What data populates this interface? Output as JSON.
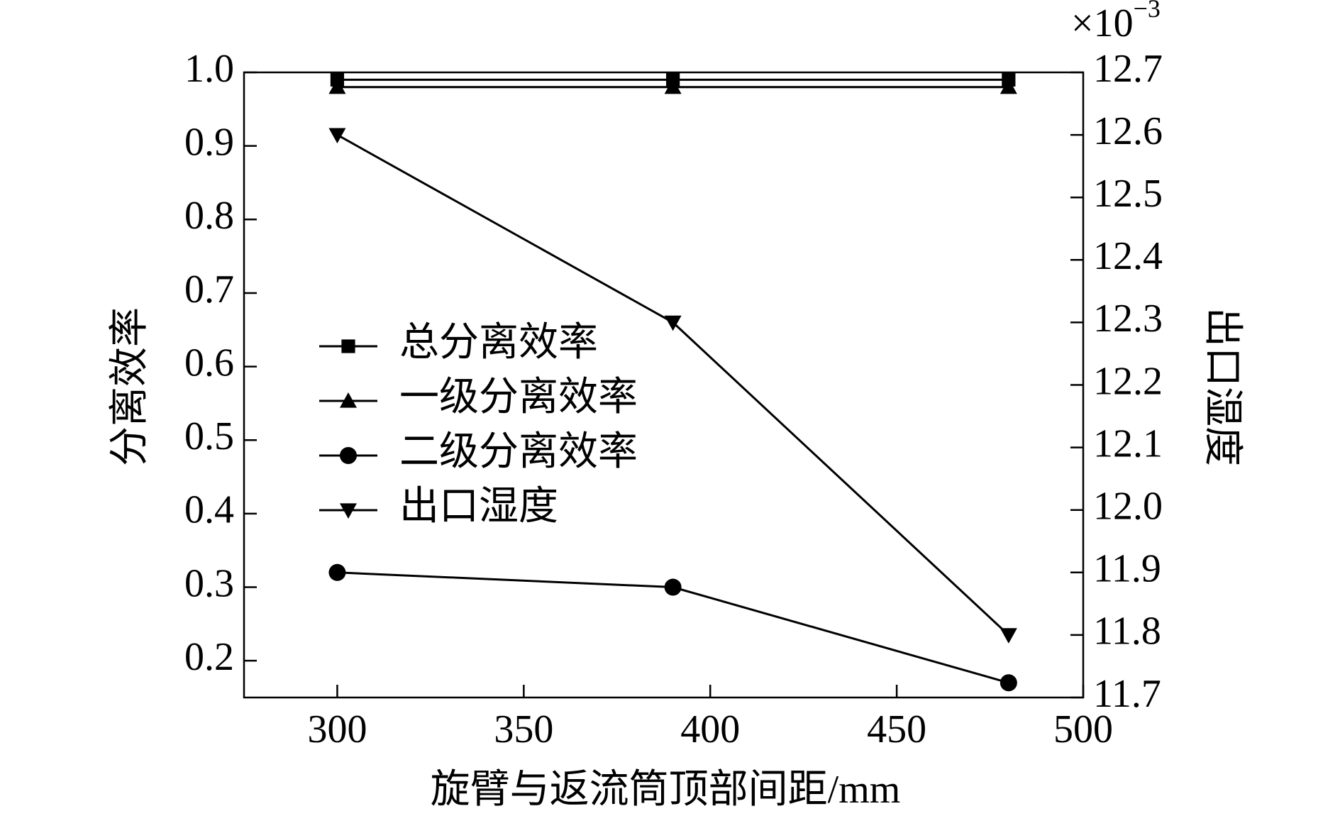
{
  "chart_data": {
    "type": "line",
    "xlabel": "旋臂与返流筒顶部间距/mm",
    "ylabel": "分离效率",
    "y2label": "出口湿度",
    "y2_multiplier": "×10",
    "y2_exponent": "−3",
    "x": [
      300,
      390,
      480
    ],
    "xlim": [
      275,
      500
    ],
    "xticks": [
      300,
      350,
      400,
      450,
      500
    ],
    "ylim": [
      0.15,
      1.0
    ],
    "yticks": [
      0.2,
      0.3,
      0.4,
      0.5,
      0.6,
      0.7,
      0.8,
      0.9,
      {
        "value": 1.0,
        "label": "1.0"
      }
    ],
    "y2lim": [
      11.7,
      12.7
    ],
    "y2ticks": [
      11.7,
      11.8,
      11.9,
      {
        "value": 12.0,
        "label": "12.0"
      },
      12.1,
      12.2,
      12.3,
      12.4,
      12.5,
      12.6,
      12.7
    ],
    "grid": false,
    "legend": "left",
    "series": [
      {
        "name": "总分离效率",
        "color": "#000000",
        "marker": "square",
        "values": [
          0.99,
          0.99,
          0.99
        ]
      },
      {
        "name": "一级分离效率",
        "color": "#000000",
        "marker": "triangle-up",
        "values": [
          0.98,
          0.98,
          0.98
        ]
      },
      {
        "name": "二级分离效率",
        "color": "#000000",
        "marker": "circle",
        "values": [
          0.32,
          0.3,
          0.17
        ]
      },
      {
        "name": "出口湿度",
        "color": "#000000",
        "marker": "triangle-down",
        "axis": "y2",
        "values": [
          12.6,
          12.3,
          11.8
        ]
      }
    ]
  }
}
